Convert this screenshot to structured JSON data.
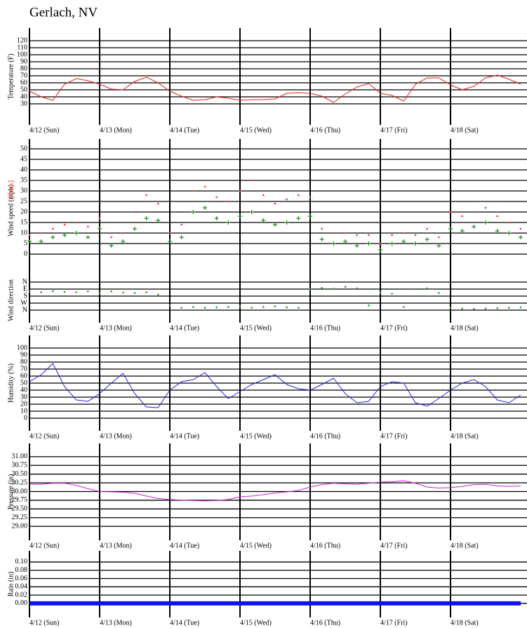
{
  "title": "Gerlach, NV",
  "x": [
    0,
    4,
    8,
    12,
    16,
    20,
    24,
    28,
    32,
    36,
    40,
    44,
    48,
    52,
    56,
    60,
    64,
    68,
    72,
    76,
    80,
    84,
    88,
    92,
    96,
    100,
    104,
    108,
    112,
    116,
    120,
    124,
    128,
    132,
    136,
    140,
    144,
    148,
    152,
    156,
    160,
    164,
    168
  ],
  "xlim": [
    0,
    168
  ],
  "xticks": [
    {
      "value": 0,
      "label": "4/12 (Sun)"
    },
    {
      "value": 24,
      "label": "4/13 (Mon)"
    },
    {
      "value": 48,
      "label": "4/14 (Tue)"
    },
    {
      "value": 72,
      "label": "4/15 (Wed)"
    },
    {
      "value": 96,
      "label": "4/16 (Thu)"
    },
    {
      "value": 120,
      "label": "4/17 (Fri)"
    },
    {
      "value": 144,
      "label": "4/18 (Sat)"
    }
  ],
  "chart_data": [
    {
      "type": "line",
      "ylabel": "Temperature (F)",
      "ylim": [
        0,
        138
      ],
      "yticks": [
        30,
        40,
        50,
        60,
        70,
        80,
        90,
        100,
        110,
        120
      ],
      "xtick_labels": true,
      "series": [
        {
          "color": "#e0201e",
          "values": [
            48,
            40,
            35,
            58,
            66,
            63,
            58,
            51,
            50,
            62,
            68,
            60,
            48,
            41,
            35,
            36,
            40,
            38,
            35,
            36,
            36,
            37,
            45,
            46,
            45,
            41,
            32,
            44,
            54,
            59,
            45,
            42,
            34,
            58,
            67,
            67,
            57,
            50,
            55,
            67,
            71,
            65,
            58
          ]
        }
      ]
    },
    {
      "type": "scatter",
      "ylabel": "Wind speed (mph)",
      "ylim": [
        -11.3,
        54.7
      ],
      "yticks": [
        0,
        5,
        10,
        15,
        20,
        25,
        30,
        35,
        40,
        45,
        50
      ],
      "xtick_labels": false,
      "series": [
        {
          "name": "[Peak]",
          "color": "#e8433a",
          "marker": "dot",
          "values": [
            9,
            10,
            12,
            14,
            15,
            13,
            17,
            8,
            10,
            20,
            28,
            24,
            10,
            14,
            30,
            32,
            27,
            25,
            30,
            35,
            28,
            24,
            26,
            28,
            27,
            12,
            10,
            10,
            9,
            9,
            5,
            9,
            10,
            9,
            12,
            8,
            20,
            18,
            20,
            22,
            18,
            15,
            12
          ]
        },
        {
          "color": "#1e8a1e",
          "marker": "plus",
          "values": [
            6,
            6,
            8,
            9,
            10,
            8,
            12,
            4,
            6,
            12,
            17,
            16,
            6,
            8,
            20,
            22,
            17,
            15,
            18,
            20,
            16,
            14,
            15,
            17,
            18,
            7,
            5,
            6,
            4,
            5,
            2,
            5,
            6,
            5,
            7,
            4,
            12,
            11,
            13,
            15,
            11,
            10,
            8
          ]
        }
      ]
    },
    {
      "type": "scatter",
      "ylabel": "Wind direction",
      "ylim": [
        522,
        -54
      ],
      "yticks": [
        {
          "value": 0,
          "label": "N"
        },
        {
          "value": 90,
          "label": "E"
        },
        {
          "value": 180,
          "label": "S"
        },
        {
          "value": 270,
          "label": "W"
        },
        {
          "value": 360,
          "label": "N"
        }
      ],
      "xtick_labels": true,
      "series": [
        {
          "color": "#2e9a2e",
          "marker": "dot",
          "values": [
            120,
            130,
            115,
            125,
            130,
            120,
            140,
            120,
            135,
            140,
            130,
            160,
            300,
            330,
            320,
            330,
            325,
            320,
            315,
            330,
            320,
            310,
            325,
            330,
            90,
            75,
            85,
            60,
            80,
            300,
            135,
            150,
            320,
            90,
            80,
            140,
            330,
            340,
            345,
            340,
            335,
            330,
            325
          ]
        }
      ]
    },
    {
      "type": "line",
      "ylabel": "Humidity (%)",
      "ylim": [
        -18,
        118
      ],
      "yticks": [
        0,
        10,
        20,
        30,
        40,
        50,
        60,
        70,
        80,
        90,
        100
      ],
      "xtick_labels": true,
      "series": [
        {
          "color": "#2222dd",
          "values": [
            52,
            62,
            78,
            45,
            26,
            24,
            35,
            50,
            64,
            35,
            16,
            15,
            40,
            52,
            55,
            65,
            45,
            28,
            38,
            48,
            55,
            62,
            48,
            42,
            40,
            48,
            57,
            35,
            22,
            24,
            45,
            52,
            50,
            22,
            17,
            28,
            40,
            50,
            55,
            45,
            26,
            22,
            33
          ]
        }
      ]
    },
    {
      "type": "line",
      "ylabel": "Pressure (in)",
      "ylim": [
        28.6,
        31.38
      ],
      "yticks": [
        {
          "value": 29,
          "label": "29.00"
        },
        {
          "value": 29.25,
          "label": "29.25"
        },
        {
          "value": 29.5,
          "label": "29.50"
        },
        {
          "value": 29.75,
          "label": "29.75"
        },
        {
          "value": 30,
          "label": "30.00"
        },
        {
          "value": 30.25,
          "label": "30.25"
        },
        {
          "value": 30.5,
          "label": "30.50"
        },
        {
          "value": 30.75,
          "label": "30.75"
        },
        {
          "value": 31,
          "label": "31.00"
        }
      ],
      "xtick_labels": true,
      "series": [
        {
          "color": "#d022d0",
          "values": [
            30.21,
            30.21,
            30.24,
            30.24,
            30.18,
            30.08,
            30.0,
            29.99,
            29.98,
            29.95,
            29.87,
            29.8,
            29.77,
            29.75,
            29.74,
            29.73,
            29.74,
            29.77,
            29.85,
            29.87,
            29.91,
            29.96,
            29.99,
            30.03,
            30.13,
            30.2,
            30.24,
            30.22,
            30.21,
            30.24,
            30.27,
            30.28,
            30.31,
            30.24,
            30.13,
            30.1,
            30.11,
            30.15,
            30.2,
            30.21,
            30.16,
            30.15,
            30.16
          ]
        }
      ]
    },
    {
      "type": "line",
      "ylabel": "Rain (in)",
      "ylim": [
        -0.034,
        0.127
      ],
      "yticks": [
        {
          "value": 0,
          "label": "0.00"
        },
        {
          "value": 0.02,
          "label": "0.02"
        },
        {
          "value": 0.04,
          "label": "0.04"
        },
        {
          "value": 0.06,
          "label": "0.06"
        },
        {
          "value": 0.08,
          "label": "0.08"
        },
        {
          "value": 0.1,
          "label": "0.10"
        }
      ],
      "xtick_labels": true,
      "series": [
        {
          "color": "#1010ee",
          "values": [
            0,
            0,
            0,
            0,
            0,
            0,
            0,
            0,
            0,
            0,
            0,
            0,
            0,
            0,
            0,
            0,
            0,
            0,
            0,
            0,
            0,
            0,
            0,
            0,
            0,
            0,
            0,
            0,
            0,
            0,
            0,
            0,
            0,
            0,
            0,
            0,
            0,
            0,
            0,
            0,
            0,
            0,
            0
          ]
        }
      ]
    }
  ]
}
